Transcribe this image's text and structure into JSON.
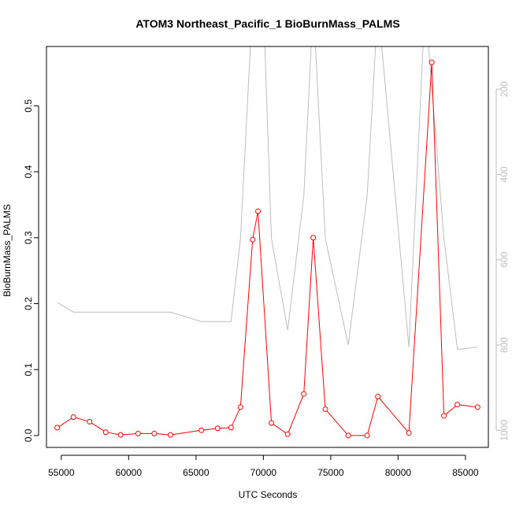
{
  "chart_data": {
    "type": "line",
    "title": "ATOM3 Northeast_Pacific_1 BioBurnMass_PALMS",
    "xlabel": "UTC Seconds",
    "ylabel": "BioBurnMass_PALMS",
    "xlim": [
      53900,
      86700
    ],
    "ylim": [
      -0.018,
      0.59
    ],
    "x_ticks": [
      55000,
      60000,
      65000,
      70000,
      75000,
      80000,
      85000
    ],
    "x_tick_labels": [
      "55000",
      "60000",
      "65000",
      "70000",
      "75000",
      "80000",
      "85000"
    ],
    "y_ticks": [
      0.0,
      0.1,
      0.2,
      0.3,
      0.4,
      0.5
    ],
    "y_tick_labels": [
      "0.0",
      "0.1",
      "0.2",
      "0.3",
      "0.4",
      "0.5"
    ],
    "y2_lim_reversed": [
      1040,
      100
    ],
    "y2_ticks": [
      200,
      400,
      600,
      800,
      1000
    ],
    "y2_tick_labels": [
      "200",
      "400",
      "600",
      "800",
      "1000"
    ],
    "grid": false,
    "colors": {
      "primary": "#ff0000",
      "secondary": "#bdbdbd",
      "frame": "#000000"
    },
    "series": [
      {
        "axis": "left",
        "style": "line+markers",
        "color": "#ff0000",
        "x": [
          54700,
          55900,
          57100,
          58300,
          59400,
          60700,
          61900,
          63100,
          65400,
          66600,
          67600,
          68300,
          69200,
          69600,
          70600,
          71800,
          73000,
          73700,
          74600,
          76300,
          77700,
          78500,
          80800,
          82500,
          83400,
          84400,
          85900
        ],
        "y": [
          0.012,
          0.028,
          0.021,
          0.005,
          0.001,
          0.003,
          0.003,
          0.001,
          0.008,
          0.011,
          0.012,
          0.043,
          0.297,
          0.34,
          0.019,
          0.002,
          0.063,
          0.3,
          0.04,
          0.0,
          0.0,
          0.059,
          0.004,
          0.566,
          0.03,
          0.047,
          0.043
        ]
      },
      {
        "axis": "right",
        "style": "line",
        "color": "#bdbdbd",
        "x": [
          54700,
          55900,
          58300,
          61900,
          63100,
          65400,
          66600,
          67600,
          68300,
          69200,
          70000,
          70600,
          71800,
          73000,
          73700,
          74600,
          76300,
          77700,
          78500,
          80800,
          82000,
          83400,
          84400,
          85900
        ],
        "y": [
          700,
          723,
          723,
          723,
          723,
          745,
          745,
          745,
          550,
          0,
          0,
          550,
          765,
          450,
          0,
          550,
          800,
          450,
          0,
          805,
          0,
          550,
          810,
          805
        ]
      }
    ]
  }
}
